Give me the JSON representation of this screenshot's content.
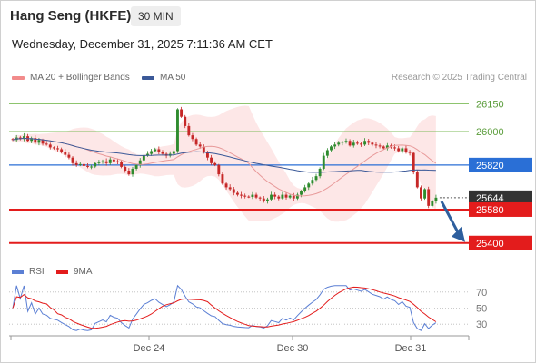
{
  "header": {
    "title": "Hang Seng (HKFE)",
    "interval": "30 MIN",
    "datetime": "Wednesday, December 31, 2025 7:11:36 AM CET"
  },
  "legend": {
    "ma20_bb": "MA 20 + Bollinger Bands",
    "ma50": "MA 50",
    "credit": "Research © 2025 Trading Central"
  },
  "rsi_legend": {
    "rsi": "RSI",
    "ma9": "9MA"
  },
  "colors": {
    "candle_up": "#2e8b2e",
    "candle_down": "#c62828",
    "bollinger_fill": "#fde3e3",
    "ma20": "#e89a9a",
    "ma50": "#3b5998",
    "support": "#e31c1c",
    "resistance": "#7dbb5a",
    "pivot": "#2a6fd6",
    "current": "#333333",
    "rsi": "#5b7fd4",
    "rsi_ma": "#e31c1c",
    "arrow": "#2e5f9e"
  },
  "chart_data": [
    {
      "type": "candlestick",
      "title": "Hang Seng (HKFE)",
      "interval": "30 MIN",
      "ylim": [
        25350,
        26230
      ],
      "x_ticks": [
        "Dec 24",
        "Dec 30",
        "Dec 31"
      ],
      "levels": [
        {
          "value": 26150,
          "label": "26150",
          "kind": "resistance"
        },
        {
          "value": 26000,
          "label": "26000",
          "kind": "resistance"
        },
        {
          "value": 25820,
          "label": "25820",
          "kind": "pivot"
        },
        {
          "value": 25644,
          "label": "25644",
          "kind": "current"
        },
        {
          "value": 25580,
          "label": "25580",
          "kind": "support"
        },
        {
          "value": 25400,
          "label": "25400",
          "kind": "support"
        }
      ],
      "forecast_arrow": {
        "from": 25644,
        "to": 25400
      },
      "close": [
        25955,
        25968,
        25960,
        25975,
        25950,
        25965,
        25940,
        25955,
        25935,
        25930,
        25915,
        25910,
        25905,
        25890,
        25875,
        25860,
        25830,
        25820,
        25825,
        25815,
        25810,
        25812,
        25830,
        25835,
        25840,
        25830,
        25850,
        25840,
        25835,
        25810,
        25790,
        25770,
        25800,
        25820,
        25845,
        25870,
        25880,
        25895,
        25905,
        25890,
        25880,
        25870,
        25880,
        25895,
        26120,
        26080,
        26030,
        25980,
        25960,
        25930,
        25920,
        25890,
        25860,
        25830,
        25820,
        25770,
        25720,
        25700,
        25690,
        25670,
        25660,
        25655,
        25650,
        25648,
        25660,
        25645,
        25640,
        25625,
        25635,
        25660,
        25650,
        25640,
        25660,
        25645,
        25655,
        25640,
        25660,
        25680,
        25700,
        25720,
        25740,
        25760,
        25800,
        25870,
        25900,
        25920,
        25930,
        25940,
        25945,
        25950,
        25925,
        25940,
        25935,
        25930,
        25950,
        25940,
        25930,
        25925,
        25920,
        25910,
        25925,
        25915,
        25910,
        25895,
        25910,
        25890,
        25885,
        25780,
        25700,
        25640,
        25690,
        25600,
        25625,
        25644
      ],
      "rsi": {
        "levels": [
          70,
          50,
          30
        ],
        "ylim": [
          20,
          80
        ]
      }
    }
  ]
}
